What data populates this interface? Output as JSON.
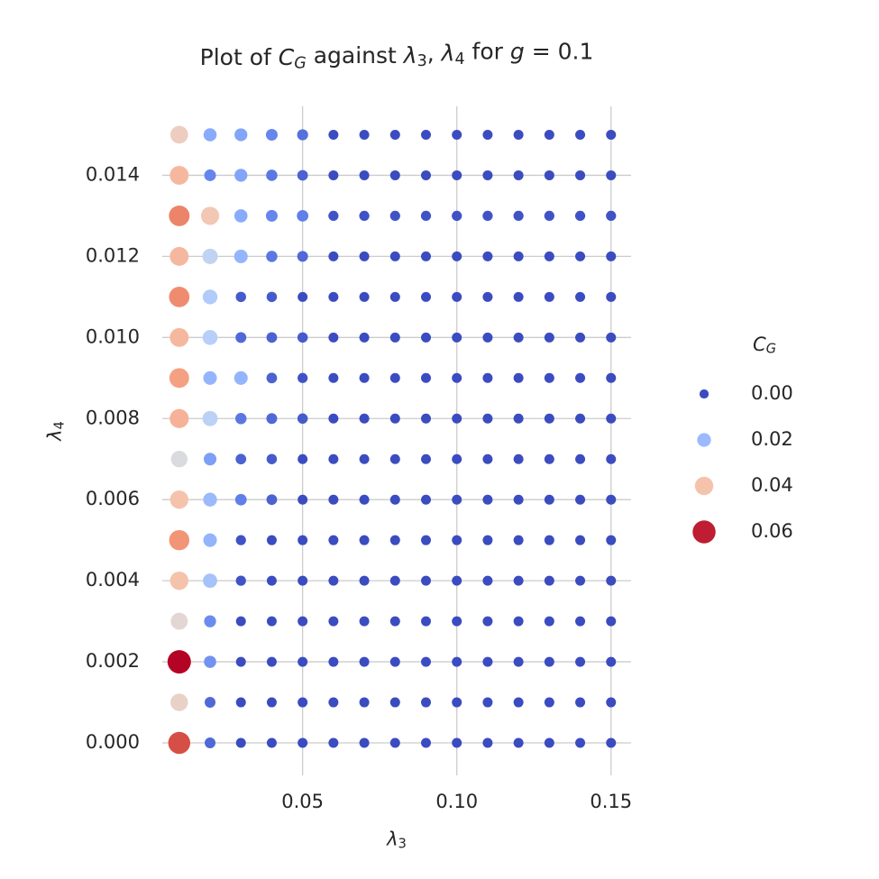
{
  "chart_data": {
    "type": "scatter",
    "title": "Plot of $C_G$ against $\\lambda_3$, $\\lambda_4$ for $g = 0.1$",
    "x_label": "$\\lambda_3$",
    "y_label": "$\\lambda_4$",
    "x": [
      0.01,
      0.02,
      0.03,
      0.04,
      0.05,
      0.06,
      0.07,
      0.08,
      0.09,
      0.1,
      0.11,
      0.12,
      0.13,
      0.14,
      0.15
    ],
    "y": [
      0.0,
      0.001,
      0.002,
      0.003,
      0.004,
      0.005,
      0.006,
      0.007,
      0.008,
      0.009,
      0.01,
      0.011,
      0.012,
      0.013,
      0.014,
      0.015
    ],
    "values": [
      [
        0.056,
        0.007,
        0.003,
        0.003,
        0.003,
        0.003,
        0.003,
        0.003,
        0.003,
        0.003,
        0.003,
        0.003,
        0.003,
        0.003,
        0.003
      ],
      [
        0.036,
        0.007,
        0.003,
        0.003,
        0.003,
        0.003,
        0.003,
        0.003,
        0.003,
        0.003,
        0.003,
        0.003,
        0.003,
        0.003,
        0.003
      ],
      [
        0.062,
        0.013,
        0.003,
        0.003,
        0.003,
        0.003,
        0.003,
        0.003,
        0.003,
        0.003,
        0.003,
        0.003,
        0.003,
        0.003,
        0.003
      ],
      [
        0.034,
        0.012,
        0.003,
        0.003,
        0.003,
        0.003,
        0.003,
        0.003,
        0.003,
        0.003,
        0.003,
        0.003,
        0.003,
        0.003,
        0.003
      ],
      [
        0.04,
        0.022,
        0.004,
        0.003,
        0.003,
        0.003,
        0.003,
        0.003,
        0.003,
        0.003,
        0.003,
        0.003,
        0.003,
        0.003,
        0.003
      ],
      [
        0.048,
        0.019,
        0.004,
        0.003,
        0.003,
        0.003,
        0.003,
        0.003,
        0.003,
        0.003,
        0.003,
        0.003,
        0.003,
        0.003,
        0.003
      ],
      [
        0.04,
        0.02,
        0.01,
        0.006,
        0.003,
        0.003,
        0.003,
        0.003,
        0.003,
        0.003,
        0.003,
        0.003,
        0.003,
        0.003,
        0.003
      ],
      [
        0.032,
        0.015,
        0.006,
        0.005,
        0.003,
        0.003,
        0.003,
        0.003,
        0.003,
        0.003,
        0.003,
        0.003,
        0.003,
        0.003,
        0.003
      ],
      [
        0.043,
        0.026,
        0.009,
        0.007,
        0.005,
        0.003,
        0.003,
        0.003,
        0.003,
        0.003,
        0.003,
        0.003,
        0.003,
        0.003,
        0.003
      ],
      [
        0.046,
        0.019,
        0.019,
        0.006,
        0.004,
        0.003,
        0.003,
        0.003,
        0.003,
        0.003,
        0.003,
        0.003,
        0.003,
        0.003,
        0.003
      ],
      [
        0.042,
        0.025,
        0.007,
        0.006,
        0.005,
        0.003,
        0.003,
        0.003,
        0.003,
        0.003,
        0.003,
        0.003,
        0.003,
        0.003,
        0.003
      ],
      [
        0.049,
        0.024,
        0.005,
        0.005,
        0.003,
        0.003,
        0.003,
        0.003,
        0.003,
        0.003,
        0.003,
        0.003,
        0.003,
        0.003,
        0.003
      ],
      [
        0.042,
        0.027,
        0.019,
        0.009,
        0.007,
        0.003,
        0.003,
        0.003,
        0.003,
        0.003,
        0.003,
        0.003,
        0.003,
        0.003,
        0.003
      ],
      [
        0.05,
        0.039,
        0.017,
        0.011,
        0.01,
        0.004,
        0.004,
        0.004,
        0.004,
        0.004,
        0.004,
        0.004,
        0.004,
        0.004,
        0.004
      ],
      [
        0.042,
        0.011,
        0.016,
        0.009,
        0.006,
        0.003,
        0.003,
        0.003,
        0.003,
        0.003,
        0.003,
        0.003,
        0.003,
        0.003,
        0.003
      ],
      [
        0.037,
        0.017,
        0.016,
        0.011,
        0.008,
        0.003,
        0.003,
        0.003,
        0.003,
        0.003,
        0.003,
        0.003,
        0.003,
        0.003,
        0.003
      ]
    ],
    "colormap": "coolwarm",
    "xlim": [
      0.0045,
      0.1565
    ],
    "ylim": [
      -0.0008,
      0.0157
    ],
    "xticks": [
      0.05,
      {
        "value": 0.1,
        "label": "0.10"
      },
      0.15
    ],
    "yticks": [
      {
        "value": 0,
        "label": "0.000"
      },
      0.002,
      0.004,
      0.006,
      0.008,
      {
        "value": 0.01,
        "label": "0.010"
      },
      0.012,
      0.014
    ],
    "grid": true,
    "legend": {
      "title": "$C_G$",
      "position": "right",
      "entries": [
        {
          "value": 0,
          "label": "0.00"
        },
        {
          "value": 0.02,
          "label": "0.02"
        },
        {
          "value": 0.04,
          "label": "0.04"
        },
        {
          "value": 0.06,
          "label": "0.06"
        }
      ]
    }
  }
}
